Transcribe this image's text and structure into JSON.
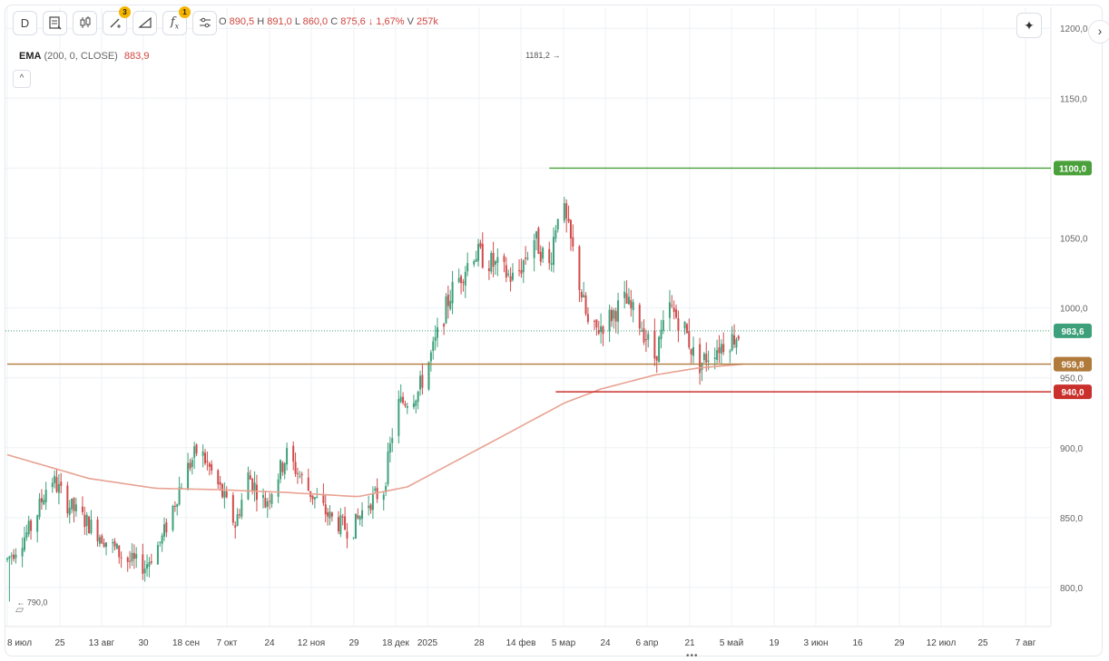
{
  "toolbar": {
    "interval_label": "D",
    "buttons": [
      {
        "name": "chart-type-button",
        "icon": "bars-icon"
      },
      {
        "name": "candles-button",
        "icon": "candles-icon"
      },
      {
        "name": "drawing-tools-button",
        "icon": "pen-icon",
        "badge": "3"
      },
      {
        "name": "ruler-button",
        "icon": "ruler-icon"
      },
      {
        "name": "indicators-button",
        "icon": "fx-icon",
        "badge": "1"
      },
      {
        "name": "settings-button",
        "icon": "sliders-icon"
      }
    ]
  },
  "ohlc": {
    "o_label": "O",
    "o": "890,5",
    "h_label": "H",
    "h": "891,0",
    "l_label": "L",
    "l": "860,0",
    "c_label": "C",
    "c": "875,6",
    "change": "↓ 1,67%",
    "v_label": "V",
    "v": "257k"
  },
  "indicator": {
    "name": "EMA",
    "params": "(200, 0, CLOSE)",
    "value": "883,9"
  },
  "colors": {
    "up": "#3da07a",
    "down": "#d04b4b",
    "ema": "#e8a292",
    "green_line": "#4aa03a",
    "brown_line": "#b07a3b",
    "red_line": "#c9302c",
    "last_price": "#3da07a"
  },
  "chart_data": {
    "type": "candlestick",
    "ylim": [
      770,
      1210
    ],
    "y_ticks": [
      "1200,0",
      "1150,0",
      "1100,0",
      "1050,0",
      "1000,0",
      "950,0",
      "900,0",
      "850,0",
      "800,0"
    ],
    "x_ticks": [
      "8 июл",
      "25",
      "13 авг",
      "30",
      "18 сен",
      "7 окт",
      "24",
      "12 ноя",
      "29",
      "18 дек",
      "2025",
      "28",
      "14 фев",
      "5 мар",
      "24",
      "6 апр",
      "21",
      "5 май",
      "19",
      "3 июн",
      "16",
      "29",
      "12 июл",
      "25",
      "7 авг"
    ],
    "close_anchors": [
      [
        "2024-07-08",
        820
      ],
      [
        "2024-07-20",
        845
      ],
      [
        "2024-07-28",
        880
      ],
      [
        "2024-08-05",
        860
      ],
      [
        "2024-08-20",
        838
      ],
      [
        "2024-09-01",
        820
      ],
      [
        "2024-09-10",
        815
      ],
      [
        "2024-09-18",
        835
      ],
      [
        "2024-09-28",
        880
      ],
      [
        "2024-10-05",
        900
      ],
      [
        "2024-10-15",
        870
      ],
      [
        "2024-10-22",
        845
      ],
      [
        "2024-10-28",
        880
      ],
      [
        "2024-11-05",
        860
      ],
      [
        "2024-11-15",
        895
      ],
      [
        "2024-11-25",
        870
      ],
      [
        "2024-12-05",
        850
      ],
      [
        "2024-12-15",
        840
      ],
      [
        "2024-12-22",
        860
      ],
      [
        "2024-12-30",
        870
      ],
      [
        "2025-01-05",
        930
      ],
      [
        "2025-01-15",
        940
      ],
      [
        "2025-01-22",
        970
      ],
      [
        "2025-01-30",
        1010
      ],
      [
        "2025-02-10",
        1040
      ],
      [
        "2025-02-20",
        1030
      ],
      [
        "2025-03-01",
        1020
      ],
      [
        "2025-03-10",
        1050
      ],
      [
        "2025-03-17",
        1030
      ],
      [
        "2025-03-22",
        1080
      ],
      [
        "2025-03-28",
        1040
      ],
      [
        "2025-04-05",
        980
      ],
      [
        "2025-04-12",
        990
      ],
      [
        "2025-04-21",
        1005
      ],
      [
        "2025-04-28",
        990
      ],
      [
        "2025-05-05",
        965
      ],
      [
        "2025-05-12",
        1000
      ],
      [
        "2025-05-19",
        985
      ],
      [
        "2025-05-25",
        958
      ],
      [
        "2025-06-01",
        970
      ],
      [
        "2025-06-10",
        978
      ],
      [
        "2025-06-15",
        983.6
      ]
    ],
    "ema": {
      "name": "EMA (200, 0, CLOSE)",
      "anchors": [
        [
          "2024-07-08",
          895
        ],
        [
          "2024-08-15",
          878
        ],
        [
          "2024-09-15",
          871
        ],
        [
          "2024-10-15",
          870
        ],
        [
          "2024-11-15",
          868
        ],
        [
          "2024-12-18",
          865
        ],
        [
          "2025-01-10",
          872
        ],
        [
          "2025-02-01",
          890
        ],
        [
          "2025-03-01",
          913
        ],
        [
          "2025-03-24",
          932
        ],
        [
          "2025-04-10",
          942
        ],
        [
          "2025-05-05",
          952
        ],
        [
          "2025-05-25",
          957
        ],
        [
          "2025-06-15",
          959.8
        ]
      ]
    },
    "high_marker": {
      "date": "2025-03-23",
      "value": 1181.2,
      "label": "1181,2 →"
    },
    "low_marker": {
      "date": "2024-07-09",
      "value": 790.0,
      "label": "← 790,0"
    },
    "horizontal_lines": [
      {
        "value": 1100.0,
        "label": "1100,0",
        "color": "#4aa03a",
        "from": "2025-03-17"
      },
      {
        "value": 959.8,
        "label": "959,8",
        "color": "#b07a3b",
        "from": "2024-07-08"
      },
      {
        "value": 940.0,
        "label": "940,0",
        "color": "#c9302c",
        "from": "2025-03-20"
      }
    ],
    "last_price": {
      "value": 983.6,
      "label": "983,6"
    },
    "grid": true
  }
}
